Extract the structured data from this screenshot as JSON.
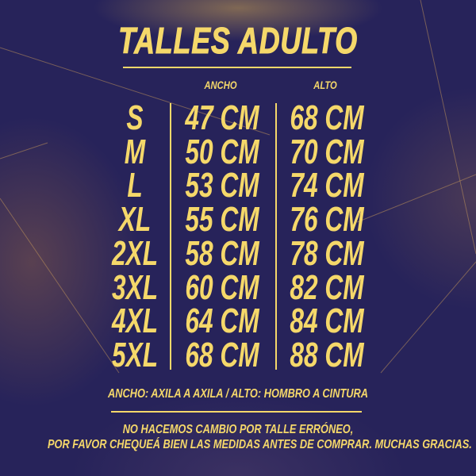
{
  "title": "TALLES ADULTO",
  "headers": {
    "width": "ANCHO",
    "height": "ALTO"
  },
  "rows": [
    {
      "size": "S",
      "width": "47 CM",
      "height": "68 CM"
    },
    {
      "size": "M",
      "width": "50 CM",
      "height": "70 CM"
    },
    {
      "size": "L",
      "width": "53 CM",
      "height": "74 CM"
    },
    {
      "size": "XL",
      "width": "55 CM",
      "height": "76 CM"
    },
    {
      "size": "2XL",
      "width": "58 CM",
      "height": "78 CM"
    },
    {
      "size": "3XL",
      "width": "60 CM",
      "height": "82 CM"
    },
    {
      "size": "4XL",
      "width": "64 CM",
      "height": "84 CM"
    },
    {
      "size": "5XL",
      "width": "68 CM",
      "height": "88 CM"
    }
  ],
  "legend": "ANCHO: AXILA A AXILA / ALTO: HOMBRO A CINTURA",
  "notice": [
    "NO HACEMOS CAMBIO POR TALLE ERRÓNEO,",
    "POR FAVOR CHEQUEÁ BIEN LAS MEDIDAS ANTES DE COMPRAR. MUCHAS GRACIAS."
  ],
  "colors": {
    "text": "#f5d86a",
    "background": "#27235a"
  }
}
